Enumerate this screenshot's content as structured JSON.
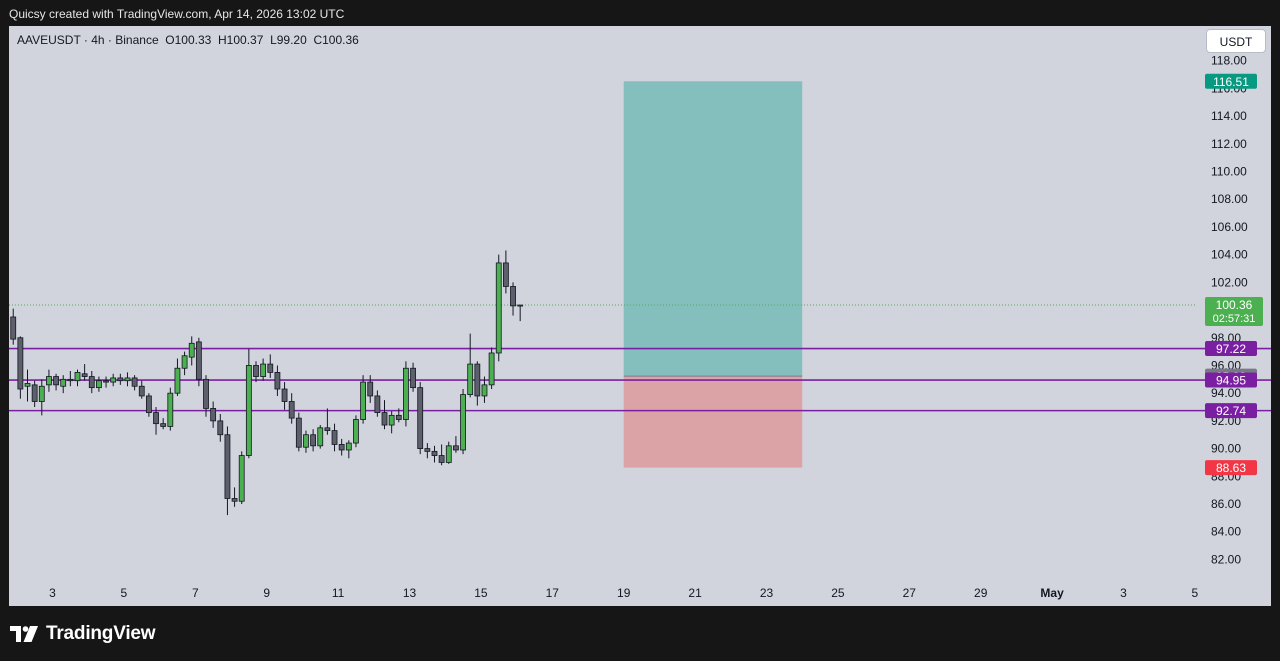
{
  "header": {
    "credit": "Quicsy created with TradingView.com, Apr 14, 2026 13:02 UTC"
  },
  "chart_header": {
    "symbol": "AAVEUSDT · 4h · Binance",
    "open": "O100.33",
    "high": "H100.37",
    "low": "L99.20",
    "close": "C100.36"
  },
  "currency_button": {
    "label": "USDT"
  },
  "brand": {
    "name": "TradingView",
    "logo_icon": "tradingview-logo-icon"
  },
  "colors": {
    "background": "#d1d4dc",
    "up_candle": "#4caf50",
    "down_candle": "#5d606b",
    "outline": "#131722",
    "level_line": "#7b1fa2",
    "target_zone": "#26a69a",
    "stop_zone": "#ef5350",
    "price_badge": "#4caf50",
    "target_badge": "#089981",
    "stop_badge": "#f23645",
    "entry_badge": "#787b86"
  },
  "chart_data": {
    "type": "candlestick",
    "y_axis": {
      "range": [
        80.3,
        120.5
      ],
      "ticks": [
        "82.00",
        "84.00",
        "86.00",
        "88.00",
        "90.00",
        "92.00",
        "94.00",
        "96.00",
        "98.00",
        "100.00",
        "102.00",
        "104.00",
        "106.00",
        "108.00",
        "110.00",
        "112.00",
        "114.00",
        "116.00",
        "118.00"
      ]
    },
    "x_axis": {
      "labels": [
        {
          "label": "3",
          "day": 3
        },
        {
          "label": "5",
          "day": 5
        },
        {
          "label": "7",
          "day": 7
        },
        {
          "label": "9",
          "day": 9
        },
        {
          "label": "11",
          "day": 11
        },
        {
          "label": "13",
          "day": 13
        },
        {
          "label": "15",
          "day": 15
        },
        {
          "label": "17",
          "day": 17
        },
        {
          "label": "19",
          "day": 19
        },
        {
          "label": "21",
          "day": 21
        },
        {
          "label": "23",
          "day": 23
        },
        {
          "label": "25",
          "day": 25
        },
        {
          "label": "27",
          "day": 27
        },
        {
          "label": "29",
          "day": 29
        },
        {
          "label": "May",
          "day": 31
        },
        {
          "label": "3",
          "day": 33
        },
        {
          "label": "5",
          "day": 35
        }
      ]
    },
    "current_price": {
      "value": 100.36,
      "label": "100.36",
      "countdown": "02:57:31"
    },
    "levels": [
      {
        "value": 97.22,
        "label": "97.22"
      },
      {
        "value": 94.95,
        "label": "94.95"
      },
      {
        "value": 92.74,
        "label": "92.74"
      }
    ],
    "position": {
      "start_day": 19.0,
      "end_day": 24.0,
      "entry": {
        "value": 95.23,
        "label": "95.23"
      },
      "target": {
        "value": 116.51,
        "label": "116.51"
      },
      "stop": {
        "value": 88.63,
        "label": "88.63"
      }
    },
    "candles": [
      {
        "t": 1.9,
        "o": 99.5,
        "h": 100.1,
        "l": 97.5,
        "c": 97.9
      },
      {
        "t": 2.1,
        "o": 98.0,
        "h": 98.1,
        "l": 93.6,
        "c": 94.3
      },
      {
        "t": 2.3,
        "o": 94.5,
        "h": 95.7,
        "l": 93.4,
        "c": 94.7
      },
      {
        "t": 2.5,
        "o": 94.6,
        "h": 94.9,
        "l": 93.0,
        "c": 93.4
      },
      {
        "t": 2.7,
        "o": 93.4,
        "h": 95.0,
        "l": 92.4,
        "c": 94.5
      },
      {
        "t": 2.9,
        "o": 94.6,
        "h": 95.7,
        "l": 94.1,
        "c": 95.2
      },
      {
        "t": 3.1,
        "o": 95.2,
        "h": 95.4,
        "l": 94.2,
        "c": 94.6
      },
      {
        "t": 3.3,
        "o": 94.5,
        "h": 95.3,
        "l": 94.0,
        "c": 95.0
      },
      {
        "t": 3.5,
        "o": 95.0,
        "h": 95.6,
        "l": 94.5,
        "c": 94.9
      },
      {
        "t": 3.7,
        "o": 94.9,
        "h": 95.7,
        "l": 94.5,
        "c": 95.5
      },
      {
        "t": 3.9,
        "o": 95.4,
        "h": 96.1,
        "l": 94.9,
        "c": 95.2
      },
      {
        "t": 4.1,
        "o": 95.2,
        "h": 95.6,
        "l": 94.0,
        "c": 94.4
      },
      {
        "t": 4.3,
        "o": 94.4,
        "h": 95.2,
        "l": 94.1,
        "c": 94.9
      },
      {
        "t": 4.5,
        "o": 94.9,
        "h": 95.2,
        "l": 94.4,
        "c": 94.8
      },
      {
        "t": 4.7,
        "o": 94.8,
        "h": 95.4,
        "l": 94.5,
        "c": 95.1
      },
      {
        "t": 4.9,
        "o": 95.1,
        "h": 95.4,
        "l": 94.6,
        "c": 94.9
      },
      {
        "t": 5.1,
        "o": 94.9,
        "h": 95.5,
        "l": 94.5,
        "c": 95.1
      },
      {
        "t": 5.3,
        "o": 95.1,
        "h": 95.3,
        "l": 94.2,
        "c": 94.5
      },
      {
        "t": 5.5,
        "o": 94.5,
        "h": 94.9,
        "l": 93.6,
        "c": 93.8
      },
      {
        "t": 5.7,
        "o": 93.8,
        "h": 94.0,
        "l": 92.3,
        "c": 92.6
      },
      {
        "t": 5.9,
        "o": 92.6,
        "h": 93.0,
        "l": 91.0,
        "c": 91.8
      },
      {
        "t": 6.1,
        "o": 91.8,
        "h": 92.2,
        "l": 91.4,
        "c": 91.6
      },
      {
        "t": 6.3,
        "o": 91.6,
        "h": 94.4,
        "l": 91.3,
        "c": 94.0
      },
      {
        "t": 6.5,
        "o": 94.0,
        "h": 96.5,
        "l": 93.8,
        "c": 95.8
      },
      {
        "t": 6.7,
        "o": 95.8,
        "h": 97.0,
        "l": 95.3,
        "c": 96.7
      },
      {
        "t": 6.9,
        "o": 96.6,
        "h": 98.1,
        "l": 96.0,
        "c": 97.6
      },
      {
        "t": 7.1,
        "o": 97.7,
        "h": 98.0,
        "l": 94.5,
        "c": 95.0
      },
      {
        "t": 7.3,
        "o": 95.0,
        "h": 95.3,
        "l": 92.3,
        "c": 92.9
      },
      {
        "t": 7.5,
        "o": 92.9,
        "h": 93.4,
        "l": 91.5,
        "c": 92.0
      },
      {
        "t": 7.7,
        "o": 92.0,
        "h": 92.5,
        "l": 90.5,
        "c": 91.0
      },
      {
        "t": 7.9,
        "o": 91.0,
        "h": 91.6,
        "l": 85.2,
        "c": 86.4
      },
      {
        "t": 8.1,
        "o": 86.4,
        "h": 87.2,
        "l": 85.8,
        "c": 86.2
      },
      {
        "t": 8.3,
        "o": 86.2,
        "h": 89.8,
        "l": 86.0,
        "c": 89.5
      },
      {
        "t": 8.5,
        "o": 89.5,
        "h": 97.2,
        "l": 89.3,
        "c": 96.0
      },
      {
        "t": 8.7,
        "o": 96.0,
        "h": 96.3,
        "l": 94.8,
        "c": 95.2
      },
      {
        "t": 8.9,
        "o": 95.2,
        "h": 96.5,
        "l": 94.9,
        "c": 96.1
      },
      {
        "t": 9.1,
        "o": 96.1,
        "h": 96.8,
        "l": 95.1,
        "c": 95.5
      },
      {
        "t": 9.3,
        "o": 95.5,
        "h": 96.0,
        "l": 93.8,
        "c": 94.3
      },
      {
        "t": 9.5,
        "o": 94.3,
        "h": 94.8,
        "l": 92.8,
        "c": 93.4
      },
      {
        "t": 9.7,
        "o": 93.4,
        "h": 94.0,
        "l": 91.8,
        "c": 92.2
      },
      {
        "t": 9.9,
        "o": 92.2,
        "h": 92.6,
        "l": 89.8,
        "c": 90.1
      },
      {
        "t": 10.1,
        "o": 90.1,
        "h": 91.3,
        "l": 89.7,
        "c": 91.0
      },
      {
        "t": 10.3,
        "o": 91.0,
        "h": 91.4,
        "l": 89.8,
        "c": 90.2
      },
      {
        "t": 10.5,
        "o": 90.2,
        "h": 91.7,
        "l": 90.0,
        "c": 91.5
      },
      {
        "t": 10.7,
        "o": 91.5,
        "h": 92.9,
        "l": 91.0,
        "c": 91.3
      },
      {
        "t": 10.9,
        "o": 91.3,
        "h": 91.8,
        "l": 89.8,
        "c": 90.3
      },
      {
        "t": 11.1,
        "o": 90.3,
        "h": 90.7,
        "l": 89.5,
        "c": 89.9
      },
      {
        "t": 11.3,
        "o": 89.9,
        "h": 90.6,
        "l": 89.3,
        "c": 90.4
      },
      {
        "t": 11.5,
        "o": 90.4,
        "h": 92.4,
        "l": 90.1,
        "c": 92.1
      },
      {
        "t": 11.7,
        "o": 92.1,
        "h": 95.3,
        "l": 91.8,
        "c": 94.8
      },
      {
        "t": 11.9,
        "o": 94.8,
        "h": 95.3,
        "l": 93.3,
        "c": 93.8
      },
      {
        "t": 12.1,
        "o": 93.8,
        "h": 94.2,
        "l": 92.3,
        "c": 92.6
      },
      {
        "t": 12.3,
        "o": 92.6,
        "h": 93.5,
        "l": 91.4,
        "c": 91.7
      },
      {
        "t": 12.5,
        "o": 91.7,
        "h": 92.7,
        "l": 91.1,
        "c": 92.4
      },
      {
        "t": 12.7,
        "o": 92.4,
        "h": 92.9,
        "l": 91.9,
        "c": 92.1
      },
      {
        "t": 12.9,
        "o": 92.1,
        "h": 96.3,
        "l": 91.6,
        "c": 95.8
      },
      {
        "t": 13.1,
        "o": 95.8,
        "h": 96.2,
        "l": 94.1,
        "c": 94.4
      },
      {
        "t": 13.3,
        "o": 94.4,
        "h": 94.8,
        "l": 89.6,
        "c": 90.0
      },
      {
        "t": 13.5,
        "o": 90.0,
        "h": 90.4,
        "l": 89.3,
        "c": 89.8
      },
      {
        "t": 13.7,
        "o": 89.8,
        "h": 90.2,
        "l": 89.0,
        "c": 89.5
      },
      {
        "t": 13.9,
        "o": 89.5,
        "h": 90.3,
        "l": 88.8,
        "c": 89.0
      },
      {
        "t": 14.1,
        "o": 89.0,
        "h": 90.5,
        "l": 88.9,
        "c": 90.2
      },
      {
        "t": 14.3,
        "o": 90.2,
        "h": 90.9,
        "l": 89.7,
        "c": 89.9
      },
      {
        "t": 14.5,
        "o": 89.9,
        "h": 94.3,
        "l": 89.6,
        "c": 93.9
      },
      {
        "t": 14.7,
        "o": 93.9,
        "h": 98.3,
        "l": 93.7,
        "c": 96.1
      },
      {
        "t": 14.9,
        "o": 96.1,
        "h": 96.3,
        "l": 93.1,
        "c": 93.8
      },
      {
        "t": 15.1,
        "o": 93.8,
        "h": 95.2,
        "l": 93.3,
        "c": 94.6
      },
      {
        "t": 15.3,
        "o": 94.6,
        "h": 97.3,
        "l": 94.3,
        "c": 96.9
      },
      {
        "t": 15.5,
        "o": 96.9,
        "h": 104.0,
        "l": 96.3,
        "c": 103.4
      },
      {
        "t": 15.7,
        "o": 103.4,
        "h": 104.3,
        "l": 101.2,
        "c": 101.7
      },
      {
        "t": 15.9,
        "o": 101.7,
        "h": 102.0,
        "l": 99.6,
        "c": 100.3
      },
      {
        "t": 16.1,
        "o": 100.33,
        "h": 100.37,
        "l": 99.2,
        "c": 100.36
      }
    ]
  }
}
